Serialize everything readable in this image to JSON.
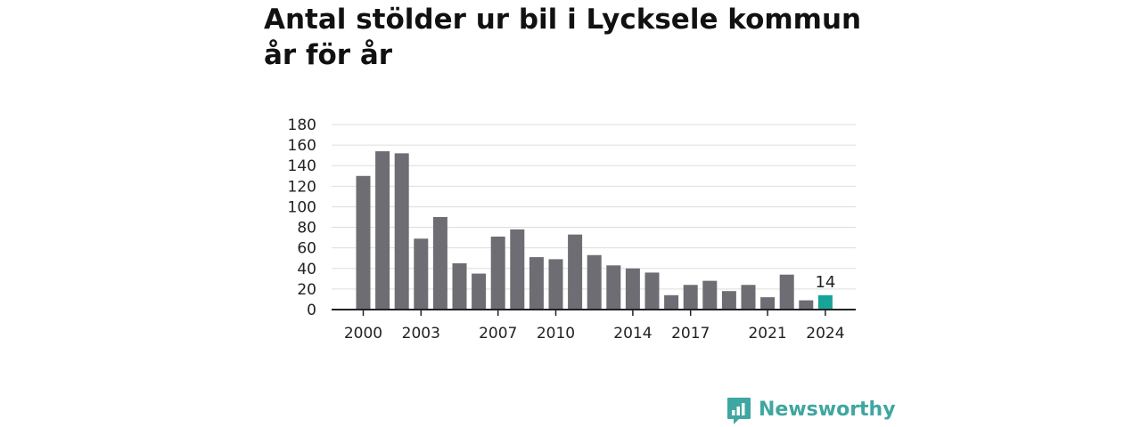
{
  "chart_data": {
    "type": "bar",
    "title": "Antal stölder ur bil i Lycksele kommun år för år",
    "xlabel": "",
    "ylabel": "",
    "categories": [
      "2000",
      "2001",
      "2002",
      "2003",
      "2004",
      "2005",
      "2006",
      "2007",
      "2008",
      "2009",
      "2010",
      "2011",
      "2012",
      "2013",
      "2014",
      "2015",
      "2016",
      "2017",
      "2018",
      "2019",
      "2020",
      "2021",
      "2022",
      "2023",
      "2024"
    ],
    "values": [
      130,
      154,
      152,
      69,
      90,
      45,
      35,
      71,
      78,
      51,
      49,
      73,
      53,
      43,
      40,
      36,
      14,
      24,
      28,
      18,
      24,
      12,
      34,
      9,
      14
    ],
    "ylim": [
      0,
      180
    ],
    "yticks": [
      0,
      20,
      40,
      60,
      80,
      100,
      120,
      140,
      160,
      180
    ],
    "xtick_labels": [
      "2000",
      "2003",
      "2007",
      "2010",
      "2014",
      "2017",
      "2021",
      "2024"
    ],
    "highlight": {
      "category": "2024",
      "value_label": "14"
    },
    "grid": true,
    "colors": {
      "bar": "#6e6d73",
      "highlight": "#17a398",
      "grid": "#dddddd",
      "axis": "#222222",
      "text": "#222222"
    }
  },
  "brand": {
    "name": "Newsworthy",
    "color": "#3fa6a1"
  }
}
